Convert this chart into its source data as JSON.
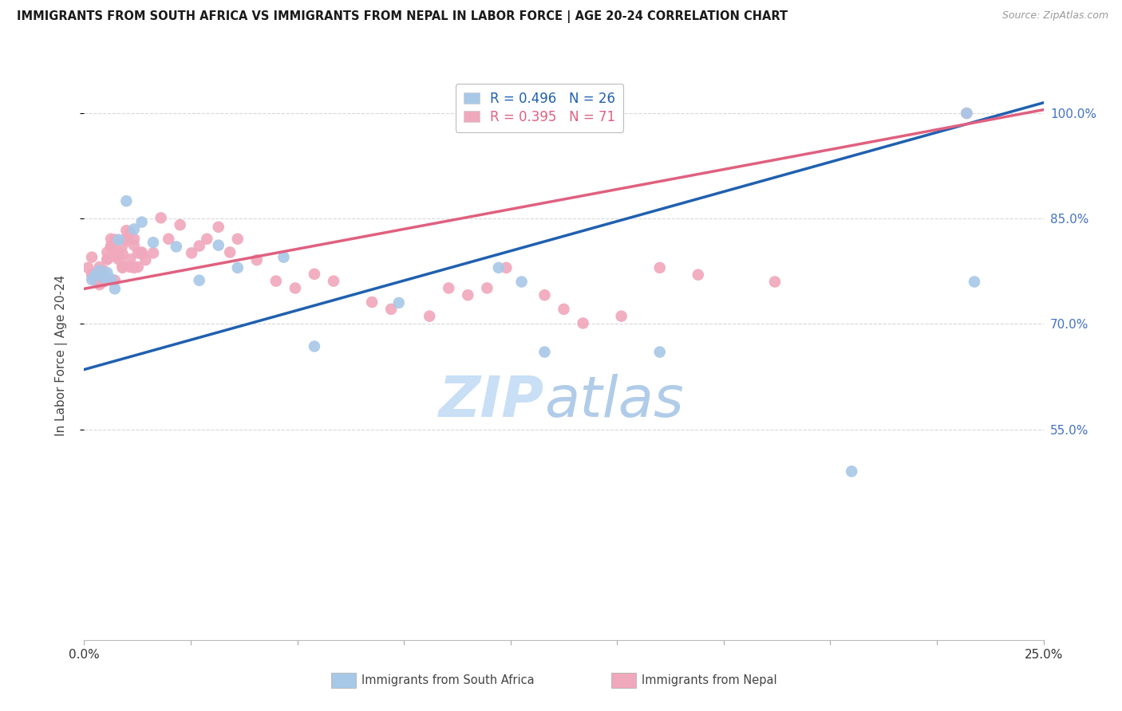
{
  "title": "IMMIGRANTS FROM SOUTH AFRICA VS IMMIGRANTS FROM NEPAL IN LABOR FORCE | AGE 20-24 CORRELATION CHART",
  "source": "Source: ZipAtlas.com",
  "ylabel": "In Labor Force | Age 20-24",
  "xlim": [
    0.0,
    0.25
  ],
  "ylim": [
    0.25,
    1.06
  ],
  "yticks": [
    0.55,
    0.7,
    0.85,
    1.0
  ],
  "ytick_labels": [
    "55.0%",
    "70.0%",
    "85.0%",
    "100.0%"
  ],
  "xtick_labels": [
    "0.0%",
    "",
    "",
    "",
    "",
    "",
    "",
    "",
    "",
    "25.0%"
  ],
  "south_africa_R": 0.496,
  "south_africa_N": 26,
  "nepal_R": 0.395,
  "nepal_N": 71,
  "sa_color": "#a8c8e8",
  "np_color": "#f0a8bc",
  "sa_line_color": "#2060b0",
  "np_line_color": "#e06080",
  "sa_line_x": [
    0.0,
    0.25
  ],
  "sa_line_y": [
    0.635,
    1.015
  ],
  "np_line_x": [
    0.0,
    0.25
  ],
  "np_line_y": [
    0.75,
    1.005
  ],
  "watermark_zip_color": "#c8dff5",
  "watermark_atlas_color": "#b0cce8",
  "grid_color": "#d8d8d8",
  "sa_x": [
    0.002,
    0.003,
    0.004,
    0.005,
    0.006,
    0.007,
    0.008,
    0.009,
    0.011,
    0.013,
    0.015,
    0.018,
    0.024,
    0.03,
    0.035,
    0.04,
    0.052,
    0.06,
    0.082,
    0.108,
    0.114,
    0.12,
    0.15,
    0.2,
    0.23,
    0.232
  ],
  "sa_y": [
    0.763,
    0.77,
    0.776,
    0.766,
    0.773,
    0.764,
    0.75,
    0.82,
    0.875,
    0.835,
    0.845,
    0.816,
    0.81,
    0.762,
    0.812,
    0.78,
    0.795,
    0.668,
    0.73,
    0.78,
    0.76,
    0.66,
    0.66,
    0.49,
    1.0,
    0.76
  ],
  "np_x": [
    0.001,
    0.002,
    0.002,
    0.003,
    0.003,
    0.004,
    0.004,
    0.005,
    0.005,
    0.006,
    0.006,
    0.007,
    0.007,
    0.008,
    0.008,
    0.009,
    0.009,
    0.01,
    0.01,
    0.011,
    0.011,
    0.012,
    0.012,
    0.013,
    0.013,
    0.014,
    0.014,
    0.015,
    0.016,
    0.018,
    0.02,
    0.022,
    0.025,
    0.028,
    0.03,
    0.032,
    0.035,
    0.038,
    0.04,
    0.045,
    0.05,
    0.055,
    0.06,
    0.065,
    0.075,
    0.08,
    0.09,
    0.095,
    0.1,
    0.105,
    0.11,
    0.12,
    0.125,
    0.13,
    0.14,
    0.15,
    0.16,
    0.18,
    0.005,
    0.005,
    0.006,
    0.007,
    0.008,
    0.009,
    0.01,
    0.01,
    0.011,
    0.012,
    0.013,
    0.015,
    0.23
  ],
  "np_y": [
    0.78,
    0.77,
    0.795,
    0.762,
    0.772,
    0.756,
    0.781,
    0.761,
    0.776,
    0.792,
    0.802,
    0.811,
    0.821,
    0.762,
    0.796,
    0.802,
    0.792,
    0.812,
    0.782,
    0.822,
    0.833,
    0.781,
    0.792,
    0.812,
    0.821,
    0.801,
    0.781,
    0.802,
    0.791,
    0.801,
    0.851,
    0.821,
    0.841,
    0.801,
    0.811,
    0.821,
    0.838,
    0.802,
    0.821,
    0.791,
    0.761,
    0.751,
    0.771,
    0.761,
    0.731,
    0.721,
    0.711,
    0.751,
    0.741,
    0.751,
    0.78,
    0.741,
    0.721,
    0.701,
    0.711,
    0.78,
    0.77,
    0.76,
    0.76,
    0.775,
    0.792,
    0.81,
    0.82,
    0.8,
    0.78,
    0.8,
    0.82,
    0.83,
    0.78,
    0.8,
    1.0
  ]
}
